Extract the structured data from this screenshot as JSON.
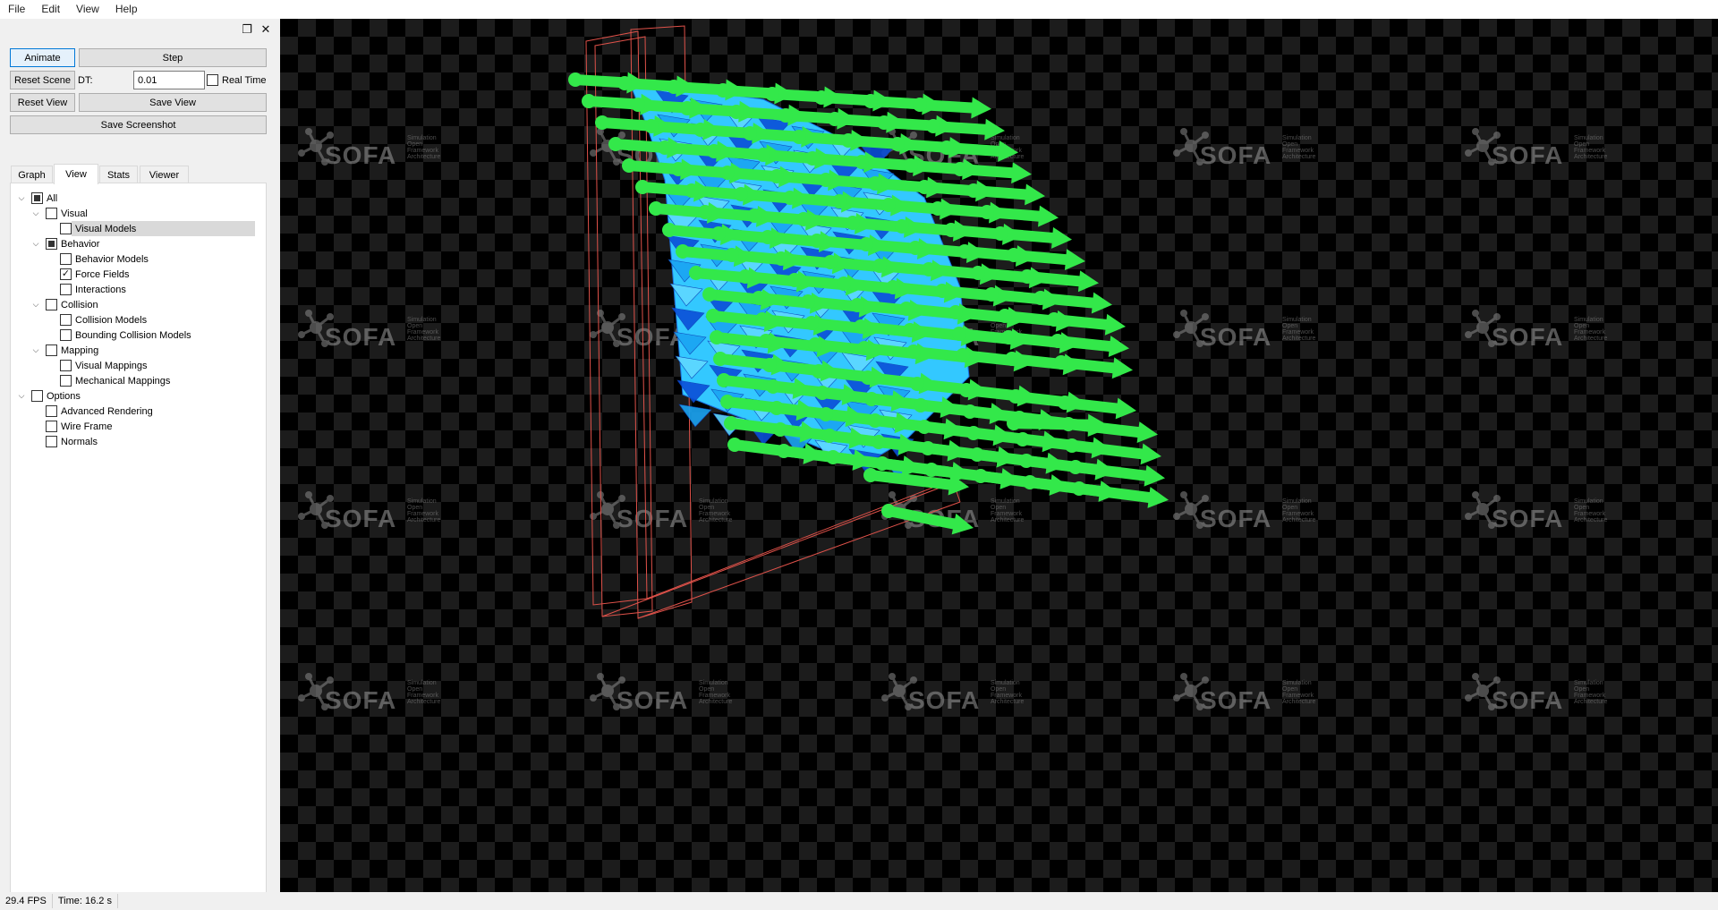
{
  "menu": [
    "File",
    "Edit",
    "View",
    "Help"
  ],
  "dock": {
    "float_icon": "❐",
    "close_icon": "✕"
  },
  "controls": {
    "animate_label": "Animate",
    "step_label": "Step",
    "reset_scene_label": "Reset Scene",
    "dt_label": "DT:",
    "dt_value": "0.01",
    "real_time_label": "Real Time",
    "reset_view_label": "Reset View",
    "save_view_label": "Save View",
    "save_screenshot_label": "Save Screenshot"
  },
  "tabs": [
    {
      "label": "Graph",
      "active": false
    },
    {
      "label": "View",
      "active": true
    },
    {
      "label": "Stats",
      "active": false
    },
    {
      "label": "Viewer",
      "active": false
    }
  ],
  "tree": [
    {
      "label": "All",
      "level": 0,
      "state": "partial",
      "expander": true
    },
    {
      "label": "Visual",
      "level": 1,
      "state": "unchecked",
      "expander": true
    },
    {
      "label": "Visual Models",
      "level": 2,
      "state": "unchecked",
      "expander": false,
      "selected": true
    },
    {
      "label": "Behavior",
      "level": 1,
      "state": "partial",
      "expander": true
    },
    {
      "label": "Behavior Models",
      "level": 2,
      "state": "unchecked",
      "expander": false
    },
    {
      "label": "Force Fields",
      "level": 2,
      "state": "checked",
      "expander": false
    },
    {
      "label": "Interactions",
      "level": 2,
      "state": "unchecked",
      "expander": false
    },
    {
      "label": "Collision",
      "level": 1,
      "state": "unchecked",
      "expander": true
    },
    {
      "label": "Collision Models",
      "level": 2,
      "state": "unchecked",
      "expander": false
    },
    {
      "label": "Bounding Collision Models",
      "level": 2,
      "state": "unchecked",
      "expander": false
    },
    {
      "label": "Mapping",
      "level": 1,
      "state": "unchecked",
      "expander": true
    },
    {
      "label": "Visual Mappings",
      "level": 2,
      "state": "unchecked",
      "expander": false
    },
    {
      "label": "Mechanical Mappings",
      "level": 2,
      "state": "unchecked",
      "expander": false
    },
    {
      "label": "Options",
      "level": 0,
      "state": "unchecked",
      "expander": true
    },
    {
      "label": "Advanced Rendering",
      "level": 1,
      "state": "unchecked",
      "expander": false
    },
    {
      "label": "Wire Frame",
      "level": 1,
      "state": "unchecked",
      "expander": false
    },
    {
      "label": "Normals",
      "level": 1,
      "state": "unchecked",
      "expander": false
    }
  ],
  "viewer": {
    "watermark_text": "SOFA",
    "watermark_subtext": [
      "Simulation",
      "Open",
      "Framework",
      "Architecture"
    ],
    "colors": {
      "arrow": "#33e84a",
      "mesh_light": "#33c8ff",
      "mesh_dark": "#0a4fd8",
      "bbox": "#e0524a"
    }
  },
  "status": {
    "fps": "29.4 FPS",
    "time": "Time: 16.2 s"
  }
}
